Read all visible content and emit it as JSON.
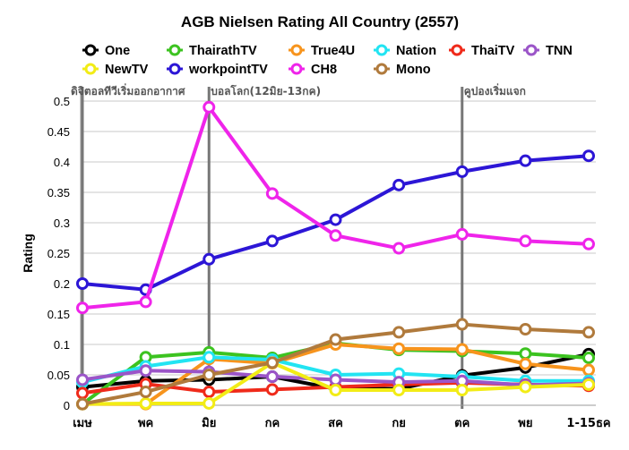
{
  "chart_data": {
    "type": "line",
    "title": "AGB Nielsen Rating All Country (2557)",
    "ylabel": "Rating",
    "xlabel": "",
    "categories": [
      "เมษ",
      "พค",
      "มิย",
      "กค",
      "สค",
      "กย",
      "ตค",
      "พย",
      "1-15ธค"
    ],
    "ylim": [
      0,
      0.5
    ],
    "yticks": [
      "0",
      "0.05",
      "0.1",
      "0.15",
      "0.2",
      "0.25",
      "0.3",
      "0.35",
      "0.4",
      "0.45",
      "0.5"
    ],
    "grid": "horizontal",
    "legend_position": "top",
    "series": [
      {
        "name": "One",
        "color": "#000000",
        "values": [
          0.03,
          0.04,
          0.042,
          0.047,
          0.027,
          0.027,
          0.049,
          0.062,
          0.084
        ]
      },
      {
        "name": "ThairathTV",
        "color": "#3cc320",
        "values": [
          0.002,
          0.079,
          0.087,
          0.078,
          0.102,
          0.091,
          0.089,
          0.085,
          0.078
        ]
      },
      {
        "name": "True4U",
        "color": "#f7941d",
        "values": [
          0.002,
          0.002,
          0.076,
          0.069,
          0.1,
          0.093,
          0.092,
          0.068,
          0.058
        ]
      },
      {
        "name": "Nation",
        "color": "#22e4f2",
        "values": [
          0.038,
          0.064,
          0.079,
          0.075,
          0.05,
          0.052,
          0.047,
          0.04,
          0.04
        ]
      },
      {
        "name": "ThaiTV",
        "color": "#ef2a1a",
        "values": [
          0.02,
          0.035,
          0.022,
          0.026,
          0.03,
          0.034,
          0.037,
          0.034,
          0.032
        ]
      },
      {
        "name": "TNN",
        "color": "#9b55c8",
        "values": [
          0.042,
          0.057,
          0.055,
          0.047,
          0.042,
          0.038,
          0.04,
          0.033,
          0.036
        ]
      },
      {
        "name": "NewTV",
        "color": "#f2ec16",
        "values": [
          0.002,
          0.003,
          0.003,
          0.07,
          0.025,
          0.025,
          0.025,
          0.03,
          0.034
        ]
      },
      {
        "name": "workpointTV",
        "color": "#2c16d6",
        "values": [
          0.2,
          0.19,
          0.24,
          0.27,
          0.305,
          0.362,
          0.384,
          0.402,
          0.41
        ]
      },
      {
        "name": "CH8",
        "color": "#ef24ea",
        "values": [
          0.16,
          0.17,
          0.49,
          0.348,
          0.279,
          0.258,
          0.281,
          0.27,
          0.265
        ]
      },
      {
        "name": "Mono",
        "color": "#b07a3c",
        "values": [
          0.002,
          0.022,
          0.05,
          0.07,
          0.108,
          0.12,
          0.133,
          0.125,
          0.12
        ]
      }
    ],
    "annotations": [
      {
        "category": "เมษ",
        "text": "ดิจิตอลทีวีเริ่มออกอากาศ"
      },
      {
        "category": "มิย",
        "text": "บอลโลก(12มิย-13กค)"
      },
      {
        "category": "ตค",
        "text": "คูปองเริ่มแจก"
      }
    ]
  }
}
